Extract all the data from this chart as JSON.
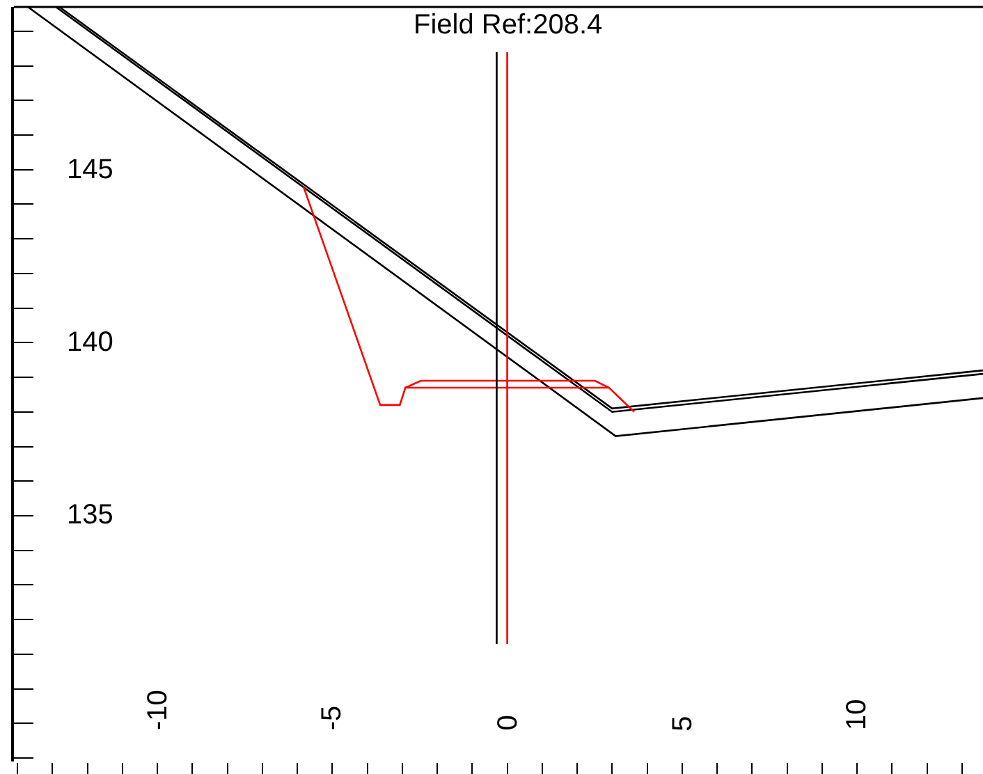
{
  "chart_data": {
    "type": "line",
    "annotations": [
      "Field Ref:208.4"
    ],
    "xlim": [
      -14.1,
      13.6
    ],
    "ylim": [
      127.9,
      149.7
    ],
    "xticks": [
      {
        "value": -14,
        "label": null
      },
      {
        "value": -13,
        "label": null
      },
      {
        "value": -12,
        "label": null
      },
      {
        "value": -11,
        "label": null
      },
      -10,
      {
        "value": -9,
        "label": null
      },
      {
        "value": -8,
        "label": null
      },
      {
        "value": -7,
        "label": null
      },
      {
        "value": -6,
        "label": null
      },
      -5,
      {
        "value": -4,
        "label": null
      },
      {
        "value": -3,
        "label": null
      },
      {
        "value": -2,
        "label": null
      },
      {
        "value": -1,
        "label": null
      },
      0,
      {
        "value": 1,
        "label": null
      },
      {
        "value": 2,
        "label": null
      },
      {
        "value": 3,
        "label": null
      },
      {
        "value": 4,
        "label": null
      },
      5,
      {
        "value": 6,
        "label": null
      },
      {
        "value": 7,
        "label": null
      },
      {
        "value": 8,
        "label": null
      },
      {
        "value": 9,
        "label": null
      },
      10,
      {
        "value": 11,
        "label": null
      },
      {
        "value": 12,
        "label": null
      },
      {
        "value": 13,
        "label": null
      }
    ],
    "yticks": [
      {
        "value": 128,
        "label": null
      },
      {
        "value": 129,
        "label": null
      },
      {
        "value": 130,
        "label": null
      },
      {
        "value": 131,
        "label": null
      },
      {
        "value": 132,
        "label": null
      },
      {
        "value": 133,
        "label": null
      },
      {
        "value": 134,
        "label": null
      },
      135,
      {
        "value": 136,
        "label": null
      },
      {
        "value": 137,
        "label": null
      },
      {
        "value": 138,
        "label": null
      },
      {
        "value": 139,
        "label": null
      },
      140,
      {
        "value": 141,
        "label": null
      },
      {
        "value": 142,
        "label": null
      },
      {
        "value": 143,
        "label": null
      },
      {
        "value": 144,
        "label": null
      },
      145,
      {
        "value": 146,
        "label": null
      },
      {
        "value": 147,
        "label": null
      },
      {
        "value": 148,
        "label": null
      },
      {
        "value": 149,
        "label": null
      }
    ],
    "marker": "none",
    "line_style": "solid",
    "series": [
      {
        "color": "#000000",
        "x": [
          -12.8,
          3.0,
          13.6
        ],
        "values": [
          149.7,
          138.1,
          139.2
        ]
      },
      {
        "color": "#000000",
        "x": [
          -12.9,
          3.0,
          13.6
        ],
        "values": [
          149.7,
          138.0,
          139.1
        ]
      },
      {
        "color": "#000000",
        "x": [
          -13.7,
          3.1,
          13.6
        ],
        "values": [
          149.7,
          137.3,
          138.4
        ]
      },
      {
        "color": "#ff0000",
        "x": [
          -5.82,
          -3.63,
          -3.07,
          -2.91,
          -2.47,
          2.51,
          2.91,
          3.63
        ],
        "values": [
          144.5,
          138.2,
          138.2,
          138.7,
          138.9,
          138.9,
          138.7,
          138.0
        ]
      },
      {
        "color": "#ff0000",
        "x": [
          -2.91,
          2.91
        ],
        "values": [
          138.7,
          138.7
        ]
      },
      {
        "color": "#000000",
        "x": [
          -0.3,
          -0.3
        ],
        "values": [
          148.4,
          131.3
        ]
      },
      {
        "color": "#ff0000",
        "x": [
          0,
          0
        ],
        "values": [
          148.4,
          131.3
        ]
      }
    ]
  }
}
